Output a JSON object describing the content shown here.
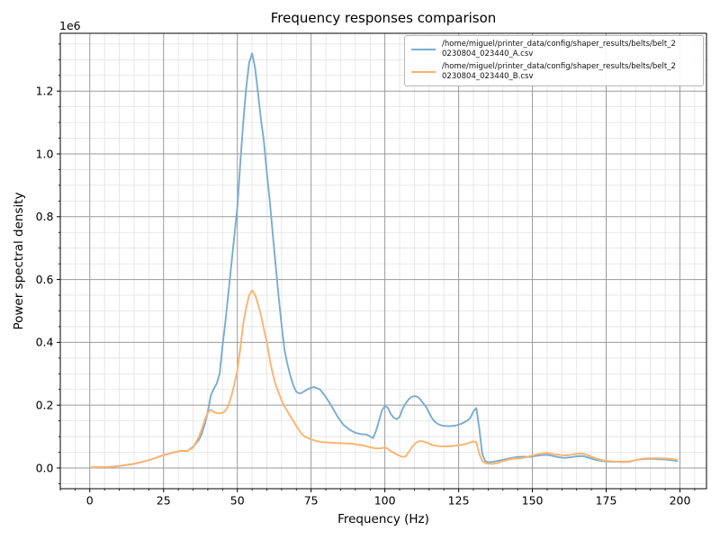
{
  "figure": {
    "title": "Frequency responses comparison",
    "offset_text": "1e6",
    "xlabel": "Frequency (Hz)",
    "ylabel": "Power spectral density",
    "background": "#ffffff"
  },
  "chart_data": {
    "type": "line",
    "title": "Frequency responses comparison",
    "xlabel": "Frequency (Hz)",
    "ylabel": "Power spectral density",
    "y_offset_label": "1e6",
    "xlim": [
      -10,
      209
    ],
    "ylim": [
      -66000,
      1384000
    ],
    "grid": {
      "major_color": "#9a9a9a",
      "minor_color": "#e2e2e2",
      "spine_color": "#000000"
    },
    "x_ticks": [
      {
        "v": 0,
        "label": "0"
      },
      {
        "v": 25,
        "label": "25"
      },
      {
        "v": 50,
        "label": "50"
      },
      {
        "v": 75,
        "label": "75"
      },
      {
        "v": 100,
        "label": "100"
      },
      {
        "v": 125,
        "label": "125"
      },
      {
        "v": 150,
        "label": "150"
      },
      {
        "v": 175,
        "label": "175"
      },
      {
        "v": 200,
        "label": "200"
      }
    ],
    "y_ticks": [
      {
        "v": 0,
        "label": "0.0"
      },
      {
        "v": 200000,
        "label": "0.2"
      },
      {
        "v": 400000,
        "label": "0.4"
      },
      {
        "v": 600000,
        "label": "0.6"
      },
      {
        "v": 800000,
        "label": "0.8"
      },
      {
        "v": 1000000,
        "label": "1.0"
      },
      {
        "v": 1200000,
        "label": "1.2"
      }
    ],
    "x_minor_step": 5,
    "y_minor_step": 50000,
    "legend": [
      {
        "color": "#78add2",
        "line1": "/home/miguel/printer_data/config/shaper_results/belts/belt_2",
        "line2": "0230804_023440_A.csv"
      },
      {
        "color": "#ffb26e",
        "line1": "/home/miguel/printer_data/config/shaper_results/belts/belt_2",
        "line2": "0230804_023440_B.csv"
      }
    ],
    "series": [
      {
        "name": "belt_20230804_023440_A.csv",
        "color": "#78add2",
        "points": [
          [
            0.5,
            2000
          ],
          [
            3,
            2500
          ],
          [
            6,
            3000
          ],
          [
            9,
            5000
          ],
          [
            12,
            9000
          ],
          [
            15,
            13000
          ],
          [
            18,
            20000
          ],
          [
            20,
            25000
          ],
          [
            22,
            31000
          ],
          [
            25,
            41000
          ],
          [
            27,
            46000
          ],
          [
            29,
            51000
          ],
          [
            31,
            55000
          ],
          [
            33,
            54000
          ],
          [
            35,
            67000
          ],
          [
            37,
            90000
          ],
          [
            38,
            110000
          ],
          [
            39,
            140000
          ],
          [
            40,
            180000
          ],
          [
            41,
            230000
          ],
          [
            42,
            252000
          ],
          [
            43,
            268000
          ],
          [
            44,
            300000
          ],
          [
            45,
            390000
          ],
          [
            46,
            470000
          ],
          [
            47,
            560000
          ],
          [
            48,
            650000
          ],
          [
            49,
            740000
          ],
          [
            50,
            830000
          ],
          [
            51,
            970000
          ],
          [
            52,
            1100000
          ],
          [
            53,
            1210000
          ],
          [
            54,
            1290000
          ],
          [
            55,
            1320000
          ],
          [
            56,
            1275000
          ],
          [
            57,
            1195000
          ],
          [
            58,
            1110000
          ],
          [
            59,
            1040000
          ],
          [
            60,
            940000
          ],
          [
            61,
            850000
          ],
          [
            62,
            745000
          ],
          [
            63,
            645000
          ],
          [
            64,
            545000
          ],
          [
            65,
            455000
          ],
          [
            66,
            375000
          ],
          [
            67,
            330000
          ],
          [
            68,
            292000
          ],
          [
            69,
            262000
          ],
          [
            70,
            243000
          ],
          [
            71,
            237000
          ],
          [
            72,
            240000
          ],
          [
            74,
            252000
          ],
          [
            76,
            258000
          ],
          [
            78,
            250000
          ],
          [
            80,
            226000
          ],
          [
            82,
            196000
          ],
          [
            84,
            163000
          ],
          [
            86,
            137000
          ],
          [
            88,
            122000
          ],
          [
            90,
            112000
          ],
          [
            92,
            108000
          ],
          [
            94,
            106000
          ],
          [
            95,
            100000
          ],
          [
            96,
            95000
          ],
          [
            97,
            118000
          ],
          [
            98,
            150000
          ],
          [
            99,
            183000
          ],
          [
            100,
            197000
          ],
          [
            101,
            192000
          ],
          [
            102,
            172000
          ],
          [
            103,
            160000
          ],
          [
            104,
            155000
          ],
          [
            105,
            163000
          ],
          [
            106,
            188000
          ],
          [
            107,
            205000
          ],
          [
            108,
            218000
          ],
          [
            109,
            226000
          ],
          [
            110,
            229000
          ],
          [
            111,
            227000
          ],
          [
            112,
            219000
          ],
          [
            113,
            206000
          ],
          [
            114,
            194000
          ],
          [
            115,
            176000
          ],
          [
            116,
            158000
          ],
          [
            117,
            147000
          ],
          [
            118,
            140000
          ],
          [
            119,
            136000
          ],
          [
            120,
            134000
          ],
          [
            122,
            133000
          ],
          [
            124,
            135000
          ],
          [
            126,
            141000
          ],
          [
            128,
            151000
          ],
          [
            129,
            160000
          ],
          [
            130,
            180000
          ],
          [
            131,
            191000
          ],
          [
            132,
            125000
          ],
          [
            133,
            45000
          ],
          [
            134,
            22000
          ],
          [
            135,
            18000
          ],
          [
            137,
            20000
          ],
          [
            139,
            24000
          ],
          [
            141,
            28000
          ],
          [
            143,
            32000
          ],
          [
            145,
            35000
          ],
          [
            147,
            36000
          ],
          [
            149,
            35000
          ],
          [
            151,
            38000
          ],
          [
            153,
            41000
          ],
          [
            155,
            42000
          ],
          [
            157,
            38000
          ],
          [
            159,
            34000
          ],
          [
            161,
            32000
          ],
          [
            163,
            34000
          ],
          [
            165,
            37000
          ],
          [
            167,
            38000
          ],
          [
            169,
            33000
          ],
          [
            171,
            27000
          ],
          [
            173,
            23000
          ],
          [
            175,
            21000
          ],
          [
            177,
            20000
          ],
          [
            179,
            20000
          ],
          [
            181,
            19000
          ],
          [
            183,
            20000
          ],
          [
            185,
            25000
          ],
          [
            187,
            28000
          ],
          [
            189,
            29000
          ],
          [
            191,
            29000
          ],
          [
            193,
            28000
          ],
          [
            195,
            27000
          ],
          [
            197,
            25000
          ],
          [
            199,
            22000
          ]
        ]
      },
      {
        "name": "belt_20230804_023440_B.csv",
        "color": "#ffb26e",
        "points": [
          [
            0.5,
            2000
          ],
          [
            3,
            2500
          ],
          [
            6,
            3000
          ],
          [
            9,
            5000
          ],
          [
            12,
            9000
          ],
          [
            15,
            13000
          ],
          [
            18,
            20000
          ],
          [
            20,
            25000
          ],
          [
            22,
            31000
          ],
          [
            25,
            41000
          ],
          [
            27,
            46000
          ],
          [
            29,
            51000
          ],
          [
            31,
            55000
          ],
          [
            33,
            54000
          ],
          [
            35,
            65000
          ],
          [
            37,
            100000
          ],
          [
            38,
            125000
          ],
          [
            39,
            155000
          ],
          [
            40,
            175000
          ],
          [
            41,
            186000
          ],
          [
            42,
            178000
          ],
          [
            43,
            175000
          ],
          [
            44,
            174000
          ],
          [
            45,
            176000
          ],
          [
            46,
            182000
          ],
          [
            47,
            200000
          ],
          [
            48,
            230000
          ],
          [
            49,
            268000
          ],
          [
            50,
            310000
          ],
          [
            51,
            380000
          ],
          [
            52,
            460000
          ],
          [
            53,
            510000
          ],
          [
            54,
            550000
          ],
          [
            55,
            565000
          ],
          [
            56,
            552000
          ],
          [
            57,
            522000
          ],
          [
            58,
            487000
          ],
          [
            59,
            442000
          ],
          [
            60,
            400000
          ],
          [
            61,
            345000
          ],
          [
            62,
            300000
          ],
          [
            63,
            265000
          ],
          [
            64,
            240000
          ],
          [
            65,
            215000
          ],
          [
            66,
            196000
          ],
          [
            67,
            180000
          ],
          [
            68,
            164000
          ],
          [
            69,
            149000
          ],
          [
            70,
            134000
          ],
          [
            71,
            119000
          ],
          [
            72,
            107000
          ],
          [
            73,
            99000
          ],
          [
            75,
            91000
          ],
          [
            77,
            85000
          ],
          [
            79,
            82000
          ],
          [
            81,
            81000
          ],
          [
            83,
            80000
          ],
          [
            85,
            79000
          ],
          [
            87,
            78000
          ],
          [
            89,
            77000
          ],
          [
            91,
            74000
          ],
          [
            93,
            71000
          ],
          [
            95,
            66000
          ],
          [
            97,
            62000
          ],
          [
            99,
            63000
          ],
          [
            100,
            65000
          ],
          [
            101,
            61000
          ],
          [
            102,
            54000
          ],
          [
            104,
            43000
          ],
          [
            105,
            39000
          ],
          [
            106,
            35000
          ],
          [
            107,
            37000
          ],
          [
            108,
            50000
          ],
          [
            109,
            64000
          ],
          [
            110,
            76000
          ],
          [
            111,
            83000
          ],
          [
            112,
            86000
          ],
          [
            113,
            84000
          ],
          [
            114,
            81000
          ],
          [
            115,
            78000
          ],
          [
            116,
            73000
          ],
          [
            118,
            70000
          ],
          [
            120,
            69000
          ],
          [
            122,
            69000
          ],
          [
            124,
            71000
          ],
          [
            126,
            74000
          ],
          [
            128,
            78000
          ],
          [
            130,
            85000
          ],
          [
            131,
            82000
          ],
          [
            132,
            45000
          ],
          [
            133,
            22000
          ],
          [
            134,
            15000
          ],
          [
            136,
            13000
          ],
          [
            138,
            15000
          ],
          [
            140,
            22000
          ],
          [
            142,
            27000
          ],
          [
            144,
            30000
          ],
          [
            146,
            31000
          ],
          [
            148,
            34000
          ],
          [
            150,
            40000
          ],
          [
            152,
            44000
          ],
          [
            154,
            46000
          ],
          [
            155,
            48000
          ],
          [
            157,
            44000
          ],
          [
            159,
            42000
          ],
          [
            161,
            40000
          ],
          [
            163,
            42000
          ],
          [
            165,
            45000
          ],
          [
            167,
            46000
          ],
          [
            169,
            40000
          ],
          [
            171,
            32000
          ],
          [
            173,
            26000
          ],
          [
            175,
            23000
          ],
          [
            177,
            21000
          ],
          [
            179,
            20000
          ],
          [
            181,
            20000
          ],
          [
            183,
            21000
          ],
          [
            185,
            25000
          ],
          [
            187,
            29000
          ],
          [
            189,
            31000
          ],
          [
            191,
            31000
          ],
          [
            193,
            31000
          ],
          [
            195,
            30000
          ],
          [
            197,
            29000
          ],
          [
            199,
            26000
          ]
        ]
      }
    ]
  }
}
